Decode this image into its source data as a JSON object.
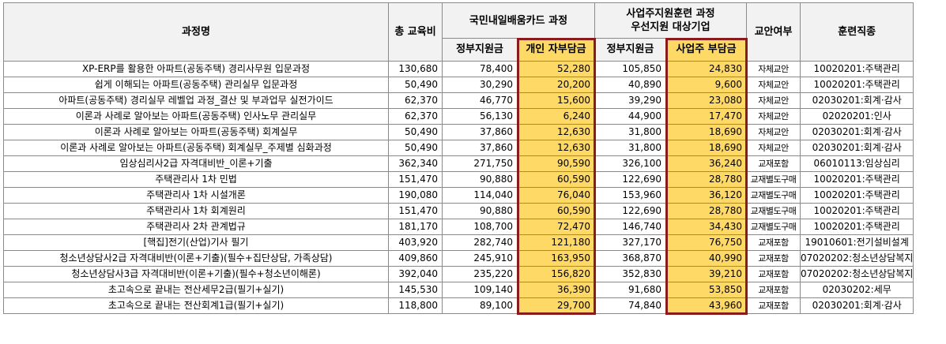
{
  "headers": {
    "course": "과정명",
    "total_fee": "총 교육비",
    "card_group": "국민내일배움카드 과정",
    "biz_group_line1": "사업주지원훈련 과정",
    "biz_group_line2": "우선지원 대상기업",
    "textbook": "교안여부",
    "job": "훈련직종",
    "gov_support_1": "정부지원금",
    "personal_cost": "개인 자부담금",
    "gov_support_2": "정부지원금",
    "employer_cost": "사업주 부담금"
  },
  "rows": [
    {
      "course": "XP-ERP를 활용한 아파트(공동주택) 경리사무원 입문과정",
      "total": "130,680",
      "gov1": "78,400",
      "personal": "52,280",
      "gov2": "105,850",
      "employer": "24,830",
      "textbook": "자체교안",
      "job": "10020201:주택관리"
    },
    {
      "course": "쉽게 이해되는 아파트(공동주택) 관리실무 입문과정",
      "total": "50,490",
      "gov1": "30,290",
      "personal": "20,200",
      "gov2": "40,890",
      "employer": "9,600",
      "textbook": "자체교안",
      "job": "10020201:주택관리"
    },
    {
      "course": "아파트(공동주택) 경리실무 레벨업 과정_결산 및 부과업무 실전가이드",
      "total": "62,370",
      "gov1": "46,770",
      "personal": "15,600",
      "gov2": "39,290",
      "employer": "23,080",
      "textbook": "자체교안",
      "job": "02030201:회계·감사"
    },
    {
      "course": "이론과 사례로 알아보는 아파트(공동주택) 인사노무 관리실무",
      "total": "62,370",
      "gov1": "56,130",
      "personal": "6,240",
      "gov2": "44,900",
      "employer": "17,470",
      "textbook": "자체교안",
      "job": "02020201:인사"
    },
    {
      "course": "이론과 사례로 알아보는 아파트(공동주택) 회계실무",
      "total": "50,490",
      "gov1": "37,860",
      "personal": "12,630",
      "gov2": "31,800",
      "employer": "18,690",
      "textbook": "자체교안",
      "job": "02030201:회계·감사"
    },
    {
      "course": "이론과 사례로 알아보는 아파트(공동주택) 회계실무_주제별 심화과정",
      "total": "50,490",
      "gov1": "37,860",
      "personal": "12,630",
      "gov2": "31,800",
      "employer": "18,690",
      "textbook": "자체교안",
      "job": "02030201:회계·감사"
    },
    {
      "course": "임상심리사2급 자격대비반_이론+기출",
      "total": "362,340",
      "gov1": "271,750",
      "personal": "90,590",
      "gov2": "326,100",
      "employer": "36,240",
      "textbook": "교재포함",
      "job": "06010113:임상심리"
    },
    {
      "course": "주택관리사 1차 민법",
      "total": "151,470",
      "gov1": "90,880",
      "personal": "60,590",
      "gov2": "122,690",
      "employer": "28,780",
      "textbook": "교재별도구매",
      "job": "10020201:주택관리"
    },
    {
      "course": "주택관리사 1차 시설개론",
      "total": "190,080",
      "gov1": "114,040",
      "personal": "76,040",
      "gov2": "153,960",
      "employer": "36,120",
      "textbook": "교재별도구매",
      "job": "10020201:주택관리"
    },
    {
      "course": "주택관리사 1차 회계원리",
      "total": "151,470",
      "gov1": "90,880",
      "personal": "60,590",
      "gov2": "122,690",
      "employer": "28,780",
      "textbook": "교재별도구매",
      "job": "10020201:주택관리"
    },
    {
      "course": "주택관리사 2차 관계법규",
      "total": "181,170",
      "gov1": "108,700",
      "personal": "72,470",
      "gov2": "146,740",
      "employer": "34,430",
      "textbook": "교재별도구매",
      "job": "10020201:주택관리"
    },
    {
      "course": "[핵집]전기(산업)기사 필기",
      "total": "403,920",
      "gov1": "282,740",
      "personal": "121,180",
      "gov2": "327,170",
      "employer": "76,750",
      "textbook": "교재포함",
      "job": "19010601:전기설비설계"
    },
    {
      "course": "청소년상담사2급 자격대비반(이론+기출)(필수+집단상담, 가족상담)",
      "total": "409,860",
      "gov1": "245,910",
      "personal": "163,950",
      "gov2": "368,870",
      "employer": "40,990",
      "textbook": "교재포함",
      "job": "07020202:청소년상담복지"
    },
    {
      "course": "청소년상담사3급 자격대비반(이론+기출)(필수+청소년이해론)",
      "total": "392,040",
      "gov1": "235,220",
      "personal": "156,820",
      "gov2": "352,830",
      "employer": "39,210",
      "textbook": "교재포함",
      "job": "07020202:청소년상담복지"
    },
    {
      "course": "초고속으로 끝내는 전산세무2급(필기+실기)",
      "total": "145,530",
      "gov1": "109,140",
      "personal": "36,390",
      "gov2": "91,680",
      "employer": "53,850",
      "textbook": "교재포함",
      "job": "02030202:세무"
    },
    {
      "course": "초고속으로 끝내는 전산회계1급(필기+실기)",
      "total": "118,800",
      "gov1": "89,100",
      "personal": "29,700",
      "gov2": "74,840",
      "employer": "43,960",
      "textbook": "교재포함",
      "job": "02030201:회계·감사"
    }
  ]
}
